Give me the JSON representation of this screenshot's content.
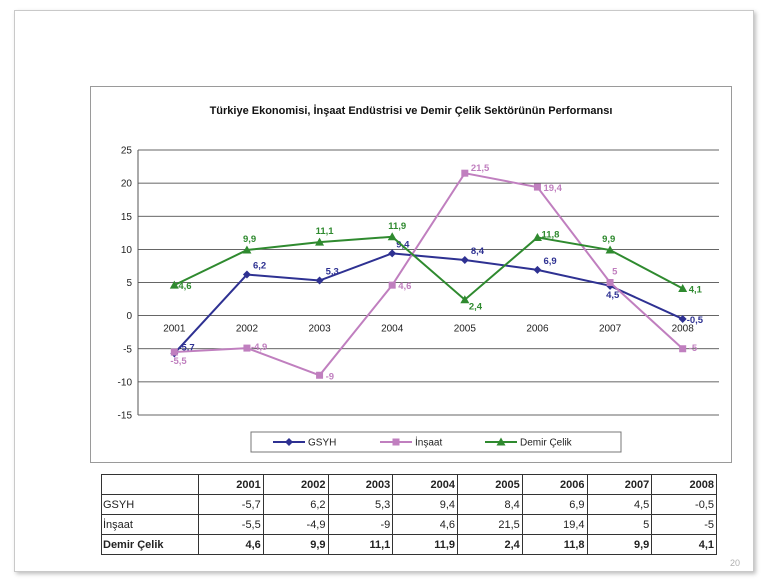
{
  "page_number": "20",
  "colors": {
    "gsyh": "#2e3192",
    "insaat": "#c07fbf",
    "demir_celik": "#2f8a2f",
    "grid": "#333333"
  },
  "chart_data": {
    "type": "line",
    "title": "Türkiye Ekonomisi, İnşaat Endüstrisi ve Demir Çelik Sektörünün Performansı",
    "x": [
      "2001",
      "2002",
      "2003",
      "2004",
      "2005",
      "2006",
      "2007",
      "2008"
    ],
    "ylim": [
      -15,
      25
    ],
    "yticks": [
      -15,
      -10,
      -5,
      0,
      5,
      10,
      15,
      20,
      25
    ],
    "grid": true,
    "legend_position": "bottom",
    "series": [
      {
        "name": "GSYH",
        "marker": "diamond",
        "values": [
          -5.7,
          6.2,
          5.3,
          9.4,
          8.4,
          6.9,
          4.5,
          -0.5
        ],
        "labels": [
          "-5,7",
          "6,2",
          "5,3",
          "9,4",
          "8,4",
          "6,9",
          "4,5",
          "-0,5"
        ]
      },
      {
        "name": "İnşaat",
        "marker": "square",
        "values": [
          -5.5,
          -4.9,
          -9,
          4.6,
          21.5,
          19.4,
          5,
          -5
        ],
        "labels": [
          "-5,5",
          "-4,9",
          "-9",
          "4,6",
          "21,5",
          "19,4",
          "5",
          "-5"
        ]
      },
      {
        "name": "Demir Çelik",
        "marker": "triangle",
        "values": [
          4.6,
          9.9,
          11.1,
          11.9,
          2.4,
          11.8,
          9.9,
          4.1
        ],
        "labels": [
          "4,6",
          "9,9",
          "11,1",
          "11,9",
          "2,4",
          "11,8",
          "9,9",
          "4,1"
        ]
      }
    ]
  },
  "table": {
    "header": [
      "",
      "2001",
      "2002",
      "2003",
      "2004",
      "2005",
      "2006",
      "2007",
      "2008"
    ],
    "rows": [
      {
        "name": "GSYH",
        "values": [
          "-5,7",
          "6,2",
          "5,3",
          "9,4",
          "8,4",
          "6,9",
          "4,5",
          "-0,5"
        ]
      },
      {
        "name": "İnşaat",
        "values": [
          "-5,5",
          "-4,9",
          "-9",
          "4,6",
          "21,5",
          "19,4",
          "5",
          "-5"
        ]
      },
      {
        "name": "Demir Çelik",
        "values": [
          "4,6",
          "9,9",
          "11,1",
          "11,9",
          "2,4",
          "11,8",
          "9,9",
          "4,1"
        ]
      }
    ]
  }
}
